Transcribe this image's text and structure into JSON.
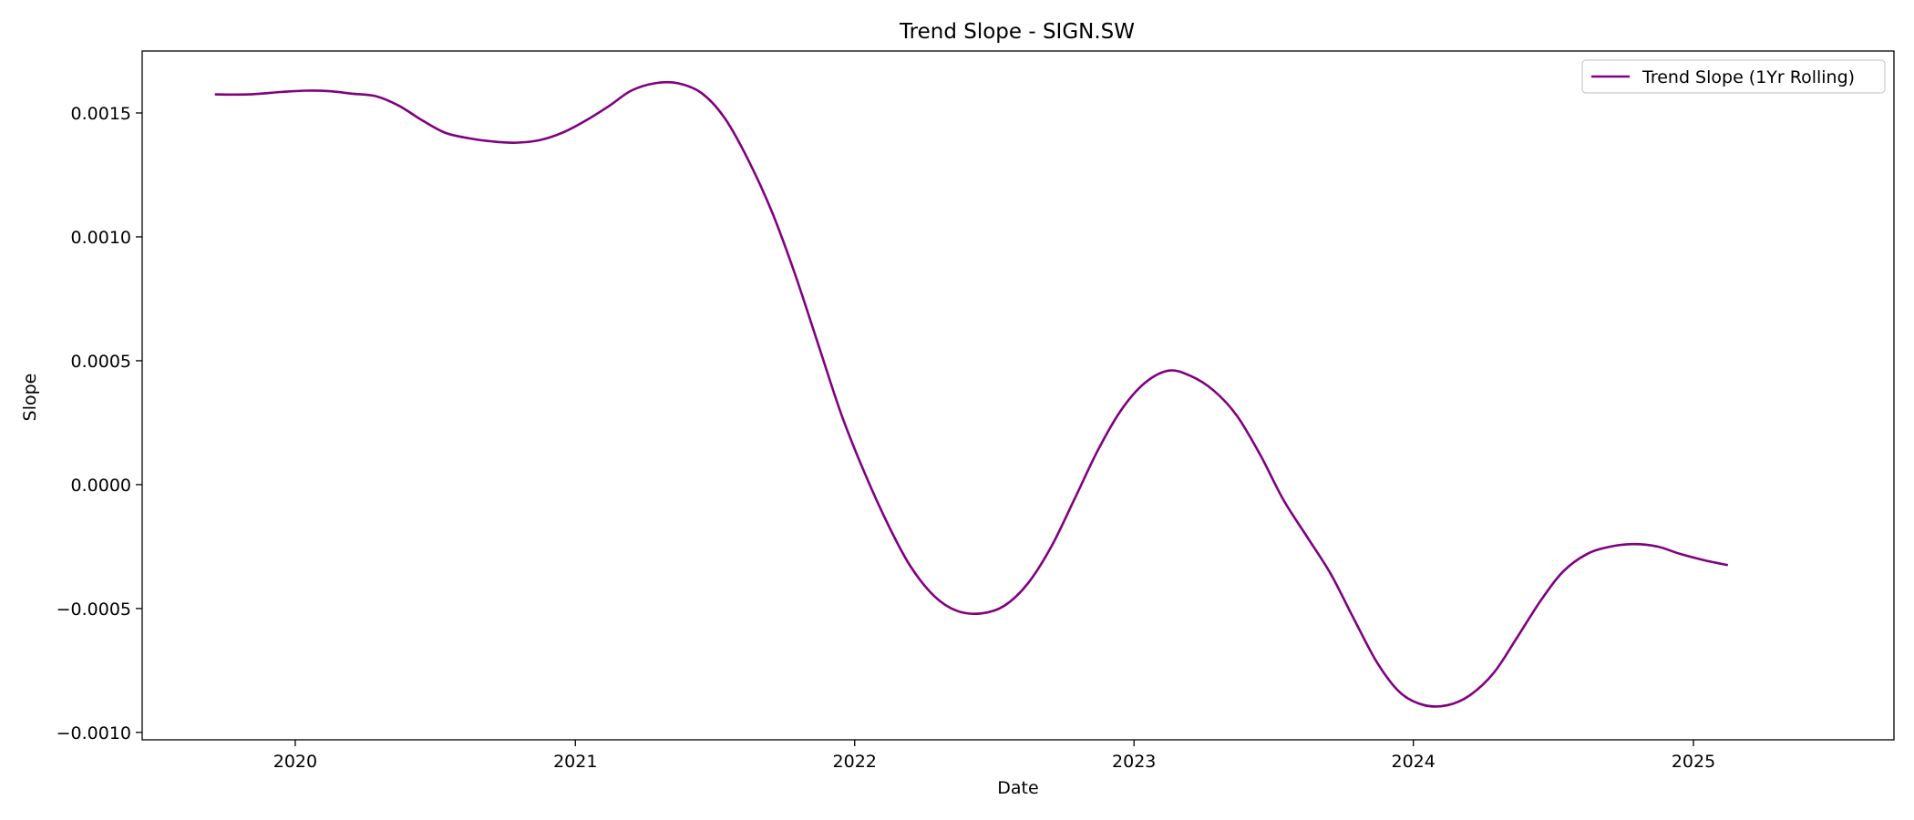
{
  "chart_data": {
    "type": "line",
    "title": "Trend Slope - SIGN.SW",
    "xlabel": "Date",
    "ylabel": "Slope",
    "x_ticks": [
      "2020",
      "2021",
      "2022",
      "2023",
      "2024",
      "2025"
    ],
    "y_ticks": [
      "0.0015",
      "0.0010",
      "0.0005",
      "0.0000",
      "−0.0005",
      "−0.0010"
    ],
    "y_tick_values": [
      0.0015,
      0.001,
      0.0005,
      0.0,
      -0.0005,
      -0.001
    ],
    "xlim": [
      "2019-06-15",
      "2025-09-20"
    ],
    "ylim": [
      -0.00103,
      0.00175
    ],
    "grid": false,
    "legend_position": "upper right",
    "series": [
      {
        "name": "Trend Slope (1Yr Rolling)",
        "color": "#800080",
        "points": [
          [
            "2019-09-18",
            0.001575
          ],
          [
            "2019-11-01",
            0.001575
          ],
          [
            "2019-12-15",
            0.001585
          ],
          [
            "2020-01-15",
            0.00159
          ],
          [
            "2020-02-15",
            0.001588
          ],
          [
            "2020-03-15",
            0.001578
          ],
          [
            "2020-04-15",
            0.001568
          ],
          [
            "2020-05-15",
            0.00153
          ],
          [
            "2020-06-15",
            0.00147
          ],
          [
            "2020-07-15",
            0.00142
          ],
          [
            "2020-08-15",
            0.001398
          ],
          [
            "2020-09-15",
            0.001385
          ],
          [
            "2020-10-15",
            0.00138
          ],
          [
            "2020-11-15",
            0.00139
          ],
          [
            "2020-12-15",
            0.00142
          ],
          [
            "2021-01-15",
            0.00147
          ],
          [
            "2021-02-15",
            0.00153
          ],
          [
            "2021-03-15",
            0.00159
          ],
          [
            "2021-04-15",
            0.00162
          ],
          [
            "2021-05-15",
            0.00162
          ],
          [
            "2021-06-15",
            0.00158
          ],
          [
            "2021-07-15",
            0.00148
          ],
          [
            "2021-08-15",
            0.00131
          ],
          [
            "2021-09-15",
            0.0011
          ],
          [
            "2021-10-15",
            0.00085
          ],
          [
            "2021-11-15",
            0.00056
          ],
          [
            "2021-12-15",
            0.00028
          ],
          [
            "2022-01-15",
            4e-05
          ],
          [
            "2022-02-15",
            -0.00017
          ],
          [
            "2022-03-15",
            -0.00033
          ],
          [
            "2022-04-15",
            -0.00045
          ],
          [
            "2022-05-15",
            -0.00051
          ],
          [
            "2022-06-15",
            -0.00052
          ],
          [
            "2022-07-15",
            -0.00049
          ],
          [
            "2022-08-15",
            -0.0004
          ],
          [
            "2022-09-15",
            -0.00025
          ],
          [
            "2022-10-15",
            -6e-05
          ],
          [
            "2022-11-15",
            0.00014
          ],
          [
            "2022-12-15",
            0.0003
          ],
          [
            "2023-01-15",
            0.00041
          ],
          [
            "2023-02-15",
            0.00046
          ],
          [
            "2023-03-15",
            0.00044
          ],
          [
            "2023-04-15",
            0.00038
          ],
          [
            "2023-05-15",
            0.00028
          ],
          [
            "2023-06-15",
            0.00012
          ],
          [
            "2023-07-15",
            -6e-05
          ],
          [
            "2023-08-15",
            -0.00021
          ],
          [
            "2023-09-15",
            -0.00036
          ],
          [
            "2023-10-15",
            -0.00054
          ],
          [
            "2023-11-15",
            -0.00072
          ],
          [
            "2023-12-15",
            -0.00084
          ],
          [
            "2024-01-15",
            -0.00089
          ],
          [
            "2024-02-15",
            -0.00089
          ],
          [
            "2024-03-15",
            -0.00085
          ],
          [
            "2024-04-15",
            -0.00076
          ],
          [
            "2024-05-15",
            -0.00062
          ],
          [
            "2024-06-15",
            -0.00047
          ],
          [
            "2024-07-15",
            -0.00035
          ],
          [
            "2024-08-15",
            -0.00028
          ],
          [
            "2024-09-15",
            -0.00025
          ],
          [
            "2024-10-15",
            -0.00024
          ],
          [
            "2024-11-15",
            -0.00025
          ],
          [
            "2024-12-15",
            -0.00028
          ],
          [
            "2025-01-15",
            -0.000305
          ],
          [
            "2025-02-15",
            -0.000325
          ]
        ]
      }
    ]
  }
}
